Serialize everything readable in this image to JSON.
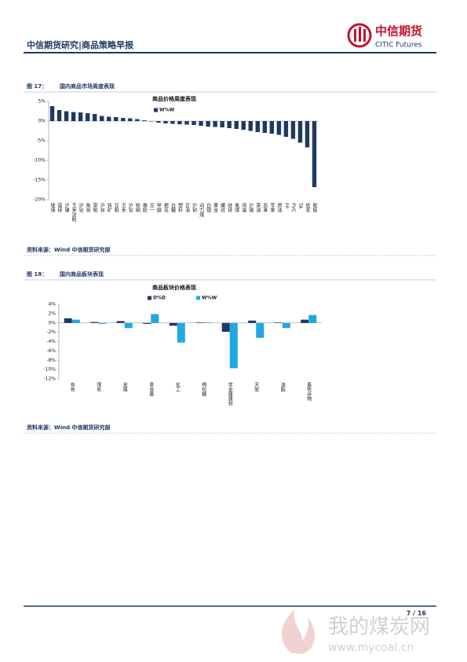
{
  "header": {
    "title": "中信期货研究|商品策略早报",
    "logo_cn": "中信期货",
    "logo_en": "CITIC Futures"
  },
  "figures": [
    {
      "number": "图 17：",
      "caption": "国内商品市场周度表现",
      "source": "资料来源：Wind  中信期货研究部"
    },
    {
      "number": "图 18：",
      "caption": "国内商品板块表现",
      "source": "资料来源：Wind  中信期货研究部"
    }
  ],
  "chart_data": [
    {
      "type": "bar",
      "title": "商品价格周度表现",
      "categories": [
        "玻璃",
        "锰硅",
        "沪镍",
        "玉米淀粉",
        "沪铝",
        "焦炭",
        "菜粕",
        "沪锌",
        "铁矿",
        "豆粕",
        "玉米",
        "沪铅",
        "棕榈",
        "橡胶",
        "豆一",
        "甲醇",
        "棉花",
        "白糖",
        "塑料",
        "豆油",
        "沪铜",
        "动力煤",
        "白银",
        "黄金",
        "螺纹",
        "硅铁",
        "焦煤",
        "鸡蛋",
        "沪锡",
        "菜油",
        "沥青",
        "苹果",
        "燃油",
        "PP",
        "PVC",
        "TA",
        "纸浆",
        "胶板"
      ],
      "series": [
        {
          "name": "W%W",
          "color": "#1f3864",
          "values": [
            3.8,
            2.8,
            2.5,
            2.3,
            2.2,
            2.0,
            1.8,
            1.3,
            1.1,
            1.0,
            0.8,
            0.7,
            0.5,
            0.2,
            -0.1,
            -0.4,
            -0.6,
            -0.7,
            -0.8,
            -0.9,
            -1.0,
            -1.2,
            -1.4,
            -1.5,
            -1.6,
            -1.8,
            -2.0,
            -2.2,
            -2.5,
            -2.8,
            -3.0,
            -3.2,
            -3.5,
            -4.0,
            -4.5,
            -5.5,
            -6.7,
            -16.8
          ]
        }
      ],
      "ylim": [
        -20,
        5
      ],
      "yticks": [
        {
          "value": 5,
          "label": "5%"
        },
        {
          "value": 0,
          "label": "0%"
        },
        {
          "value": -5,
          "label": "-5%"
        },
        {
          "value": -10,
          "label": "-10%"
        },
        {
          "value": -15,
          "label": "-15%"
        },
        {
          "value": -20,
          "label": "-20%"
        }
      ],
      "grid": false
    },
    {
      "type": "bar",
      "title": "商品板块价格表现",
      "categories": [
        "有色",
        "煤炭",
        "金属",
        "贵金属",
        "化工",
        "棉纺糖",
        "非金属建材",
        "天胶",
        "油脂",
        "畜牧谷物"
      ],
      "series": [
        {
          "name": "D%D",
          "color": "#1f3864",
          "values": [
            1.0,
            0.2,
            0.4,
            -0.2,
            -0.6,
            0.1,
            -1.9,
            0.5,
            0.1,
            0.7
          ]
        },
        {
          "name": "W%W",
          "color": "#21a8e0",
          "values": [
            0.7,
            -0.2,
            -1.1,
            1.9,
            -4.2,
            0.1,
            -9.7,
            -3.2,
            -1.1,
            1.7
          ]
        }
      ],
      "ylim": [
        -12,
        4
      ],
      "yticks": [
        {
          "value": 4,
          "label": "4%"
        },
        {
          "value": 2,
          "label": "2%"
        },
        {
          "value": 0,
          "label": "0%"
        },
        {
          "value": -2,
          "label": "-2%"
        },
        {
          "value": -4,
          "label": "-4%"
        },
        {
          "value": -6,
          "label": "-6%"
        },
        {
          "value": -8,
          "label": "-8%"
        },
        {
          "value": -10,
          "label": "-10%"
        },
        {
          "value": -12,
          "label": "-12%"
        }
      ],
      "grid": false
    }
  ],
  "footer": {
    "page": "7 / 16"
  },
  "watermark": {
    "name": "我的煤炭网",
    "url": "www.mycoal.cn"
  }
}
